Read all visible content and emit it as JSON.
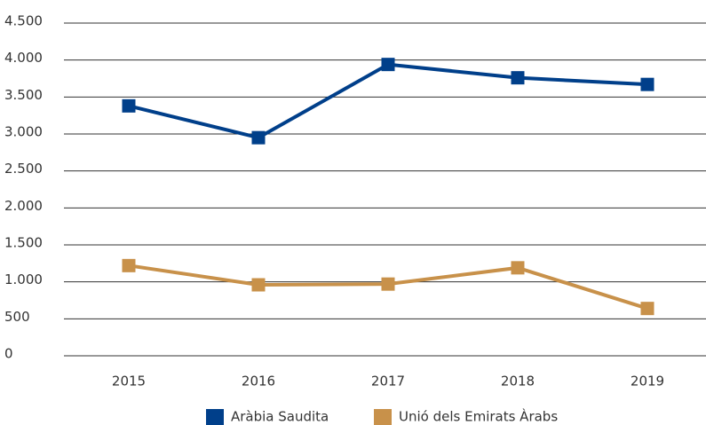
{
  "chart_data": {
    "type": "line",
    "categories": [
      "2015",
      "2016",
      "2017",
      "2018",
      "2019"
    ],
    "series": [
      {
        "name": "Aràbia Saudita",
        "color": "#003f8a",
        "values": [
          3380,
          2950,
          3940,
          3760,
          3670
        ]
      },
      {
        "name": "Unió dels Emirats Àrabs",
        "color": "#c8914a",
        "values": [
          1220,
          960,
          970,
          1190,
          640
        ]
      }
    ],
    "ylim": [
      0,
      4500
    ],
    "yticks": [
      0,
      500,
      {
        "value": 1000,
        "label": "1.000"
      },
      {
        "value": 1500,
        "label": "1.500"
      },
      {
        "value": 2000,
        "label": "2.000"
      },
      {
        "value": 2500,
        "label": "2.500"
      },
      {
        "value": 3000,
        "label": "3.000"
      },
      {
        "value": 3500,
        "label": "3.500"
      },
      {
        "value": 4000,
        "label": "4.000"
      },
      {
        "value": 4500,
        "label": "4.500"
      }
    ],
    "grid": true,
    "legend": "bottom"
  }
}
